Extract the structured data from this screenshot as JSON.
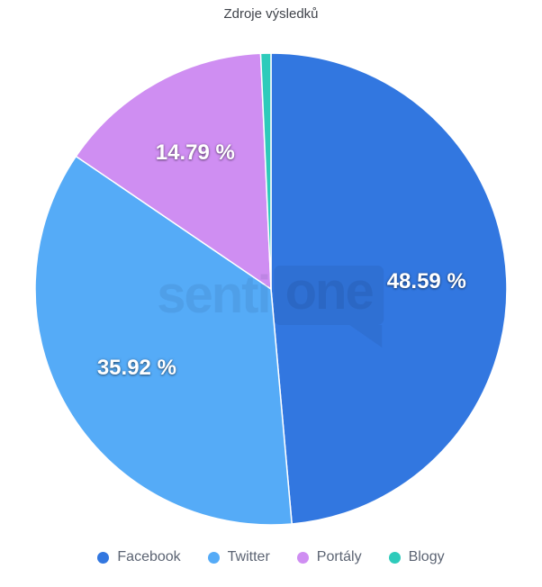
{
  "title_color": "#3f434a",
  "legend_text_color": "#5c6473",
  "watermark": {
    "part1": "senti",
    "part2": "one"
  },
  "chart_data": {
    "type": "pie",
    "title": "Zdroje výsledků",
    "legend_position": "bottom",
    "direction": "clockwise",
    "start_angle_deg": 0,
    "slice_border_color": "#ffffff",
    "label_color": "#ffffff",
    "series": [
      {
        "name": "Facebook",
        "value": 48.59,
        "label": "48.59 %",
        "color": "#3277e0"
      },
      {
        "name": "Twitter",
        "value": 35.92,
        "label": "35.92 %",
        "color": "#55abf7"
      },
      {
        "name": "Portály",
        "value": 14.79,
        "label": "14.79 %",
        "color": "#cf8ef2"
      },
      {
        "name": "Blogy",
        "value": 0.7,
        "label": "",
        "color": "#2ecbbb"
      }
    ]
  }
}
